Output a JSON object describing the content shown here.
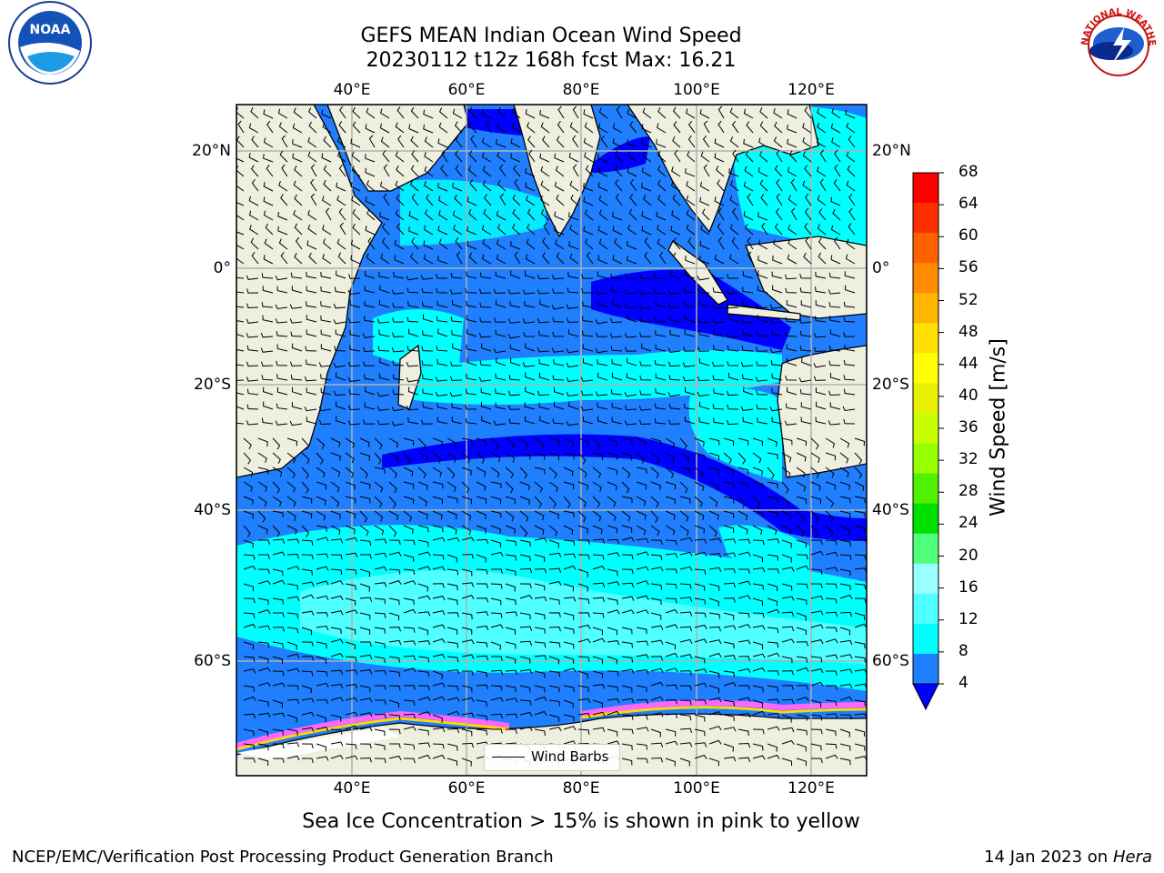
{
  "header": {
    "title_line1": "GEFS MEAN Indian Ocean Wind Speed",
    "title_line2": "20230112 t12z 168h fcst   Max: 16.21"
  },
  "map": {
    "lon_ticks": [
      "40°E",
      "60°E",
      "80°E",
      "100°E",
      "120°E"
    ],
    "lat_ticks_left": [
      "20°N",
      "0°",
      "20°S",
      "40°S",
      "60°S"
    ],
    "lat_ticks_right": [
      "20°N",
      "0°",
      "20°S",
      "40°S",
      "60°S"
    ],
    "land_color": "#efefdf",
    "ocean_color": "#1f7fff",
    "legend_label": "Wind Barbs"
  },
  "colorbar": {
    "label": "Wind Speed [m/s]",
    "ticks": [
      "68",
      "64",
      "60",
      "56",
      "52",
      "48",
      "44",
      "40",
      "36",
      "32",
      "28",
      "24",
      "20",
      "16",
      "12",
      "8",
      "4"
    ],
    "colors": [
      "#ff0000",
      "#ff3000",
      "#ff6000",
      "#ff8c00",
      "#ffb400",
      "#ffe000",
      "#ffff00",
      "#e6f000",
      "#c8ff00",
      "#96ff00",
      "#50f000",
      "#00e000",
      "#50ff78",
      "#9affff",
      "#50ffff",
      "#00ffff",
      "#1f7fff"
    ],
    "under_color": "#0000ff"
  },
  "caption": "Sea Ice Concentration > 15% is shown in pink to yellow",
  "footer": {
    "left": "NCEP/EMC/Verification Post Processing Product Generation Branch",
    "date": "14 Jan 2023 on ",
    "machine": "Hera"
  },
  "logos": {
    "noaa_text": "NOAA",
    "nws_text": "NATIONAL WEATHER SERVICE"
  }
}
